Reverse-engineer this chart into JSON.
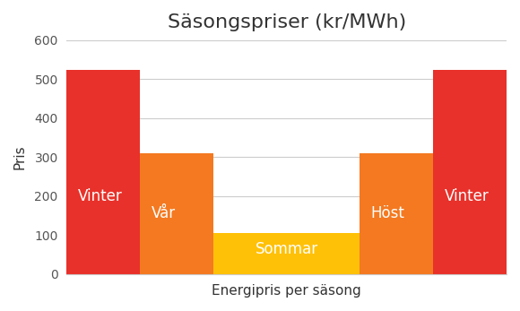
{
  "title": "Säsongspriser (kr/MWh)",
  "xlabel": "Energipris per säsong",
  "ylabel": "Pris",
  "categories": [
    "Vinter",
    "Vår",
    "Sommar",
    "Höst",
    "Vinter"
  ],
  "values": [
    525,
    310,
    105,
    310,
    525
  ],
  "colors": [
    "#E8312A",
    "#F47920",
    "#FFC107",
    "#F47920",
    "#E8312A"
  ],
  "labels": [
    "Vinter",
    "Vår",
    "Sommar",
    "Höst",
    "Vinter"
  ],
  "bar_widths": [
    1.0,
    1.0,
    2.0,
    1.0,
    1.0
  ],
  "bar_centers": [
    0.5,
    1.5,
    3.0,
    4.5,
    5.5
  ],
  "ylim": [
    0,
    600
  ],
  "background_color": "#ffffff",
  "grid_color": "#cccccc",
  "title_fontsize": 16,
  "label_fontsize": 12,
  "axis_fontsize": 11,
  "text_color": "#ffffff"
}
